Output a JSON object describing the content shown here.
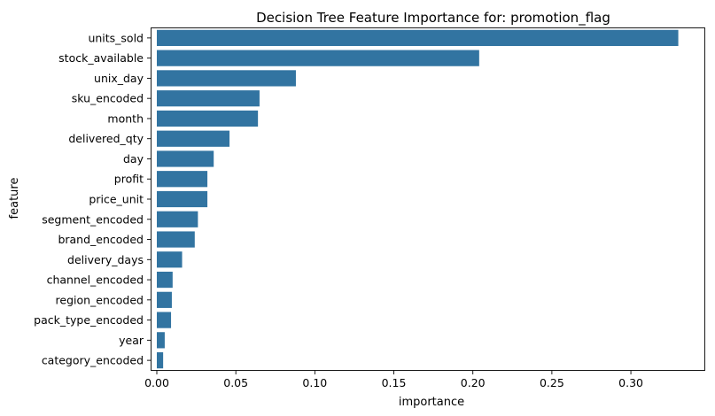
{
  "chart_data": {
    "type": "bar",
    "orientation": "horizontal",
    "title": "Decision Tree Feature Importance for: promotion_flag",
    "xlabel": "importance",
    "ylabel": "feature",
    "xlim": [
      0,
      0.3465
    ],
    "xticks": [
      0.0,
      0.05,
      0.1,
      0.15,
      0.2,
      0.25,
      0.3
    ],
    "xtick_labels": [
      "0.00",
      "0.05",
      "0.10",
      "0.15",
      "0.20",
      "0.25",
      "0.30"
    ],
    "grid": false,
    "bar_color": "#3274a1",
    "categories": [
      "units_sold",
      "stock_available",
      "unix_day",
      "sku_encoded",
      "month",
      "delivered_qty",
      "day",
      "profit",
      "price_unit",
      "segment_encoded",
      "brand_encoded",
      "delivery_days",
      "channel_encoded",
      "region_encoded",
      "pack_type_encoded",
      "year",
      "category_encoded"
    ],
    "values": [
      0.33,
      0.204,
      0.088,
      0.065,
      0.064,
      0.046,
      0.036,
      0.032,
      0.032,
      0.026,
      0.024,
      0.016,
      0.01,
      0.0095,
      0.009,
      0.005,
      0.004
    ]
  }
}
